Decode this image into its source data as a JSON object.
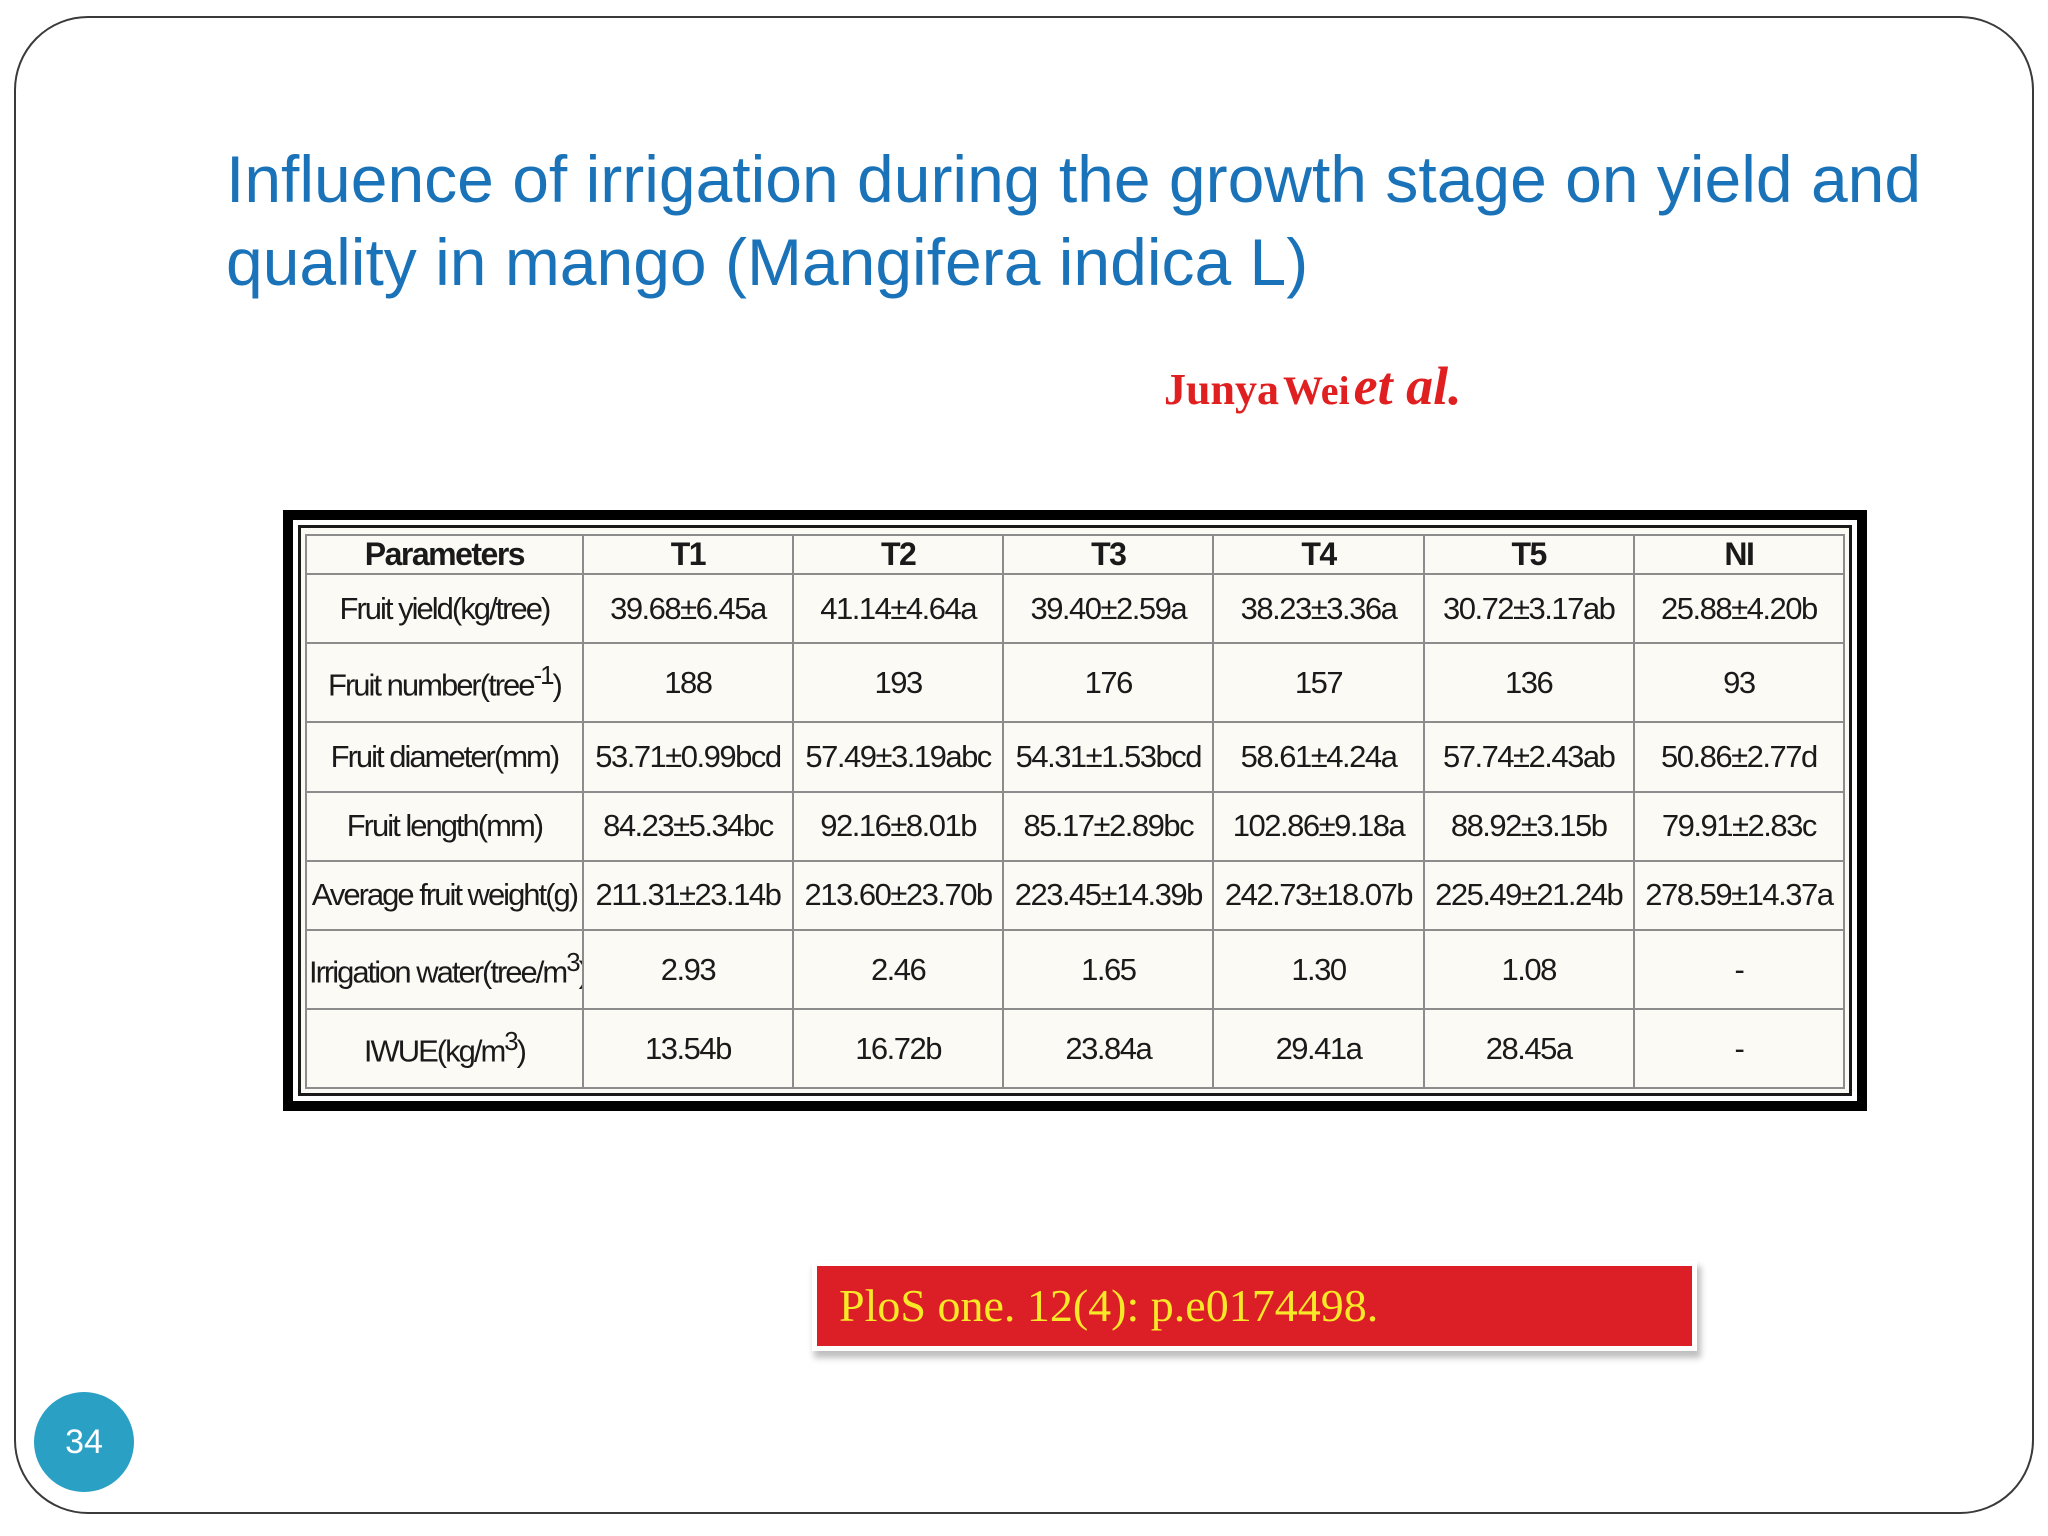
{
  "slide": {
    "title": "Influence of irrigation during the growth stage on yield and quality in mango (Mangifera indica L)",
    "author": {
      "first": "Junya",
      "last": "Wei",
      "etal": "et al."
    },
    "citation": "PloS one. 12(4): p.e0174498.",
    "page_number": "34"
  },
  "table": {
    "headers": [
      "Parameters",
      "T1",
      "T2",
      "T3",
      "T4",
      "T5",
      "NI"
    ],
    "rows": [
      {
        "param": "Fruit yield(kg/tree)",
        "values": [
          "39.68±6.45a",
          "41.14±4.64a",
          "39.40±2.59a",
          "38.23±3.36a",
          "30.72±3.17ab",
          "25.88±4.20b"
        ]
      },
      {
        "param": "Fruit number(tree",
        "param_sup": "-1",
        "param_end": ")",
        "values": [
          "188",
          "193",
          "176",
          "157",
          "136",
          "93"
        ]
      },
      {
        "param": "Fruit diameter(mm)",
        "values": [
          "53.71±0.99bcd",
          "57.49±3.19abc",
          "54.31±1.53bcd",
          "58.61±4.24a",
          "57.74±2.43ab",
          "50.86±2.77d"
        ]
      },
      {
        "param": "Fruit length(mm)",
        "values": [
          "84.23±5.34bc",
          "92.16±8.01b",
          "85.17±2.89bc",
          "102.86±9.18a",
          "88.92±3.15b",
          "79.91±2.83c"
        ]
      },
      {
        "param": "Average fruit weight(g)",
        "values": [
          "211.31±23.14b",
          "213.60±23.70b",
          "223.45±14.39b",
          "242.73±18.07b",
          "225.49±21.24b",
          "278.59±14.37a"
        ]
      },
      {
        "param": "Irrigation water(tree/m",
        "param_sup": "3",
        "param_end": ")",
        "values": [
          "2.93",
          "2.46",
          "1.65",
          "1.30",
          "1.08",
          "-"
        ]
      },
      {
        "param": "IWUE(kg/m",
        "param_sup": "3",
        "param_end": ")",
        "values": [
          "13.54b",
          "16.72b",
          "23.84a",
          "29.41a",
          "28.45a",
          "-"
        ]
      }
    ]
  },
  "colors": {
    "title": "#1a73b8",
    "author": "#e02020",
    "citation_bg": "#dc1f26",
    "citation_text": "#f7e928",
    "page_badge": "#2aa1c4"
  }
}
